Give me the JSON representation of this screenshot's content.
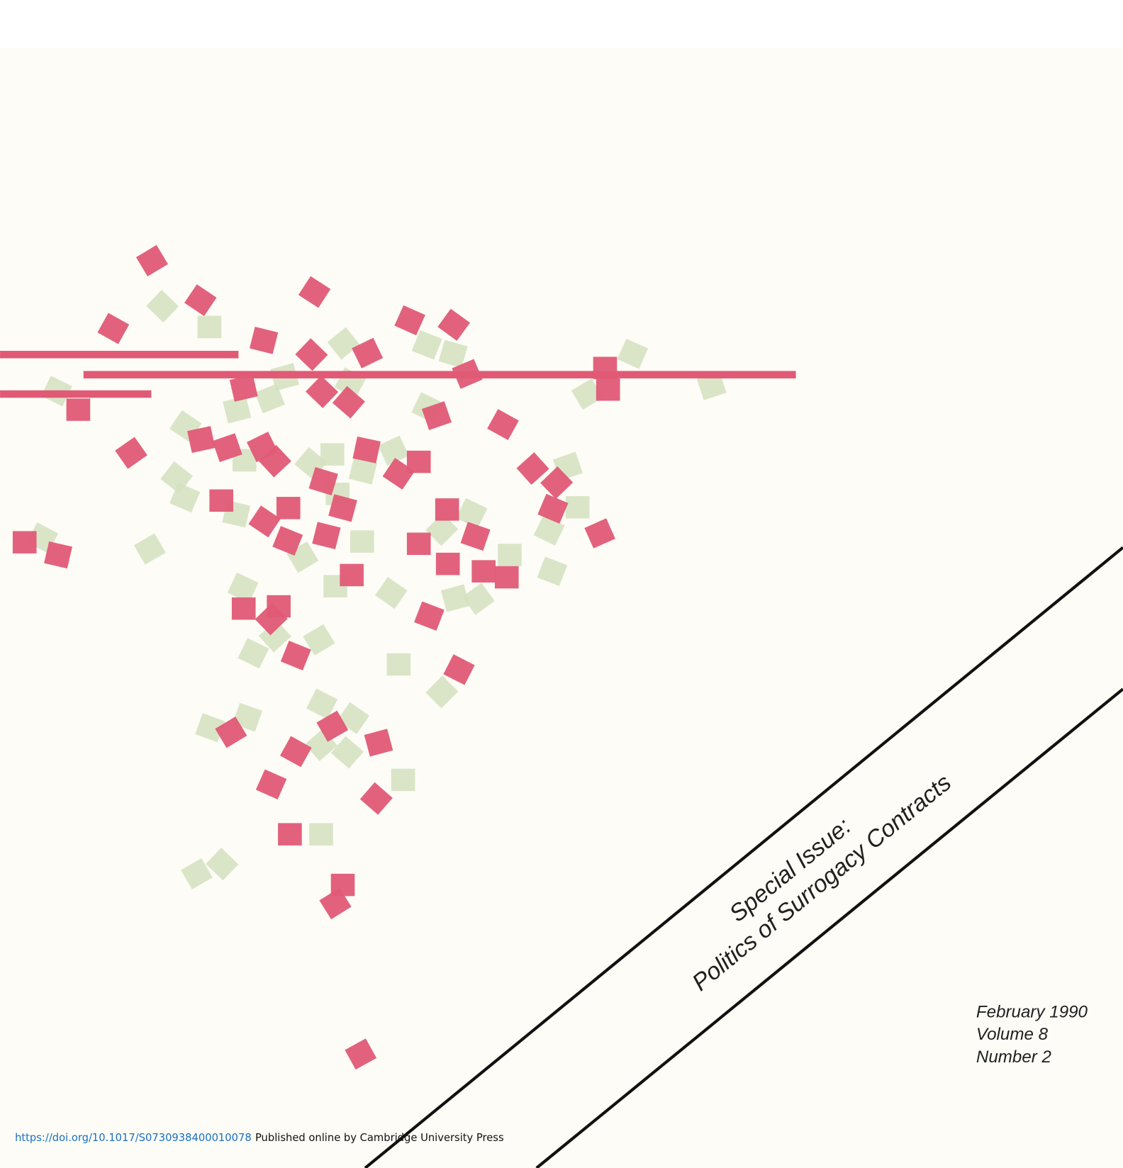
{
  "cover": {
    "special_issue": "Special Issue:",
    "topic": "Politics of Surrogacy Contracts",
    "issue": [
      "February 1990",
      "Volume 8",
      "Number 2"
    ]
  },
  "footer": {
    "doi": "https://doi.org/10.1017/S0730938400010078",
    "note": "Published online by Cambridge University Press"
  }
}
